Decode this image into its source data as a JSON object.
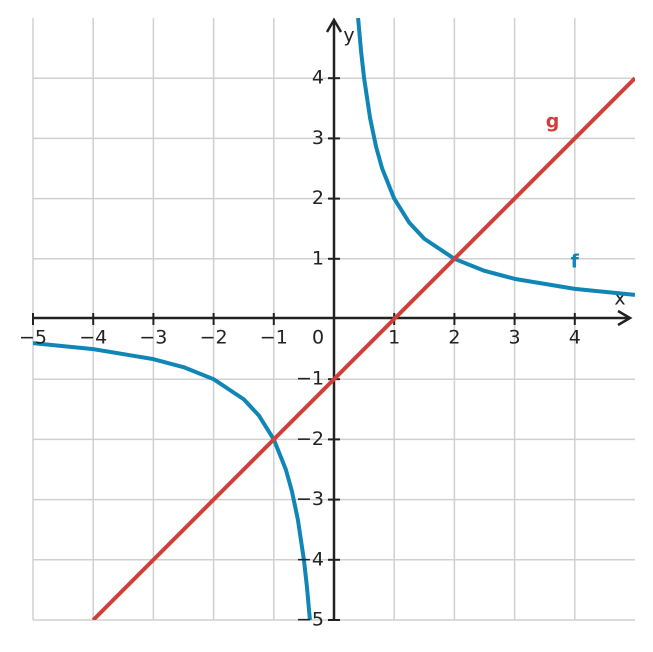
{
  "chart_data": {
    "type": "line",
    "x_label": "x",
    "y_label": "y",
    "xlim": [
      -5,
      5
    ],
    "ylim": [
      -5,
      5
    ],
    "xticks": [
      {
        "value": -5,
        "label": "−5"
      },
      {
        "value": -4,
        "label": "−4"
      },
      {
        "value": -3,
        "label": "−3"
      },
      {
        "value": -2,
        "label": "−2"
      },
      {
        "value": -1,
        "label": "−1"
      },
      0,
      1,
      2,
      3,
      4
    ],
    "yticks": [
      {
        "value": -5,
        "label": "−5"
      },
      {
        "value": -4,
        "label": "−4"
      },
      {
        "value": -3,
        "label": "−3"
      },
      {
        "value": -2,
        "label": "−2"
      },
      {
        "value": -1,
        "label": "−1"
      },
      1,
      2,
      3,
      4
    ],
    "grid": true,
    "series": [
      {
        "name": "f",
        "color": "#0f86b6",
        "x": [
          -5,
          -4,
          -3,
          -2.5,
          -2,
          -1.5,
          -1.25,
          -1,
          -0.8,
          -0.7,
          -0.6,
          -0.5,
          -0.45,
          -0.4,
          null,
          0.4,
          0.45,
          0.5,
          0.6,
          0.7,
          0.8,
          1,
          1.25,
          1.5,
          2,
          2.5,
          3,
          4,
          5
        ],
        "values": [
          -0.4,
          -0.5,
          -0.6667,
          -0.8,
          -1,
          -1.3333,
          -1.6,
          -2,
          -2.5,
          -2.8571,
          -3.3333,
          -4,
          -4.4444,
          -5,
          null,
          5,
          4.4444,
          4,
          3.3333,
          2.8571,
          2.5,
          2,
          1.6,
          1.3333,
          1,
          0.8,
          0.6667,
          0.5,
          0.4
        ]
      },
      {
        "name": "g",
        "color": "#d13f3a",
        "x": [
          -4,
          5
        ],
        "values": [
          -5,
          4
        ]
      }
    ]
  }
}
